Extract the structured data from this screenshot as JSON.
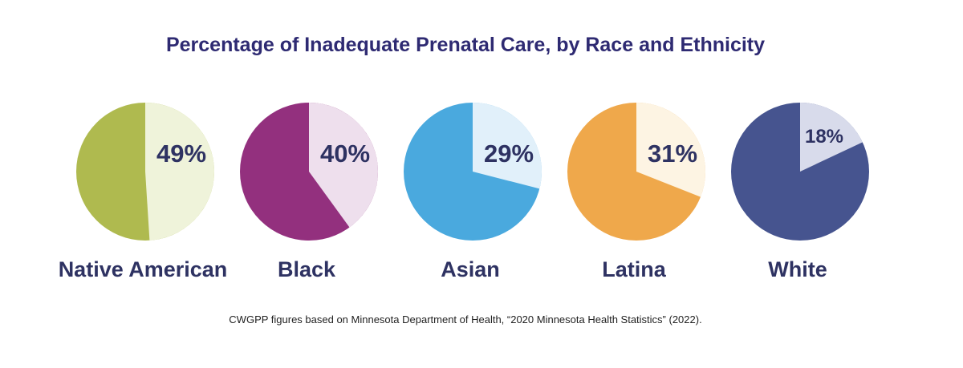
{
  "chart_data": {
    "type": "pie",
    "title": "Percentage of Inadequate Prenatal Care, by Race and Ethnicity",
    "source": "CWGPP figures based on Minnesota Department of Health, “2020 Minnesota Health Statistics” (2022).",
    "pies": [
      {
        "label": "Native American",
        "value": 49,
        "value_label": "49%",
        "color": "#afba4f",
        "light": "#eff3da"
      },
      {
        "label": "Black",
        "value": 40,
        "value_label": "40%",
        "color": "#93307e",
        "light": "#eedfed"
      },
      {
        "label": "Asian",
        "value": 29,
        "value_label": "29%",
        "color": "#4aa9de",
        "light": "#e1f0fa"
      },
      {
        "label": "Latina",
        "value": 31,
        "value_label": "31%",
        "color": "#efa84b",
        "light": "#fdf4e3"
      },
      {
        "label": "White",
        "value": 18,
        "value_label": "18%",
        "color": "#46548f",
        "light": "#d8dbeb"
      }
    ]
  }
}
